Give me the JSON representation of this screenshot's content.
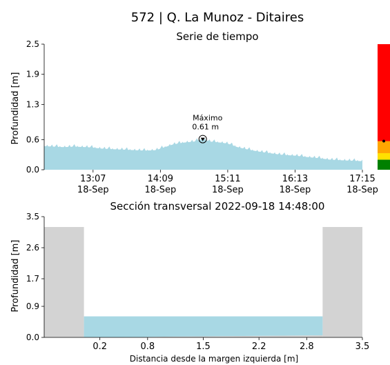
{
  "chart_data": [
    {
      "type": "area",
      "title": "572 | Q. La Munoz - Ditaires",
      "subtitle": "Serie de tiempo",
      "xlabel": "",
      "ylabel": "Profundidad [m]",
      "ylim": [
        0.0,
        2.5
      ],
      "y_ticks": [
        "0.0",
        "0.6",
        "1.3",
        "1.9",
        "2.5"
      ],
      "x_ticks": [
        {
          "time": "13:07",
          "date": "18-Sep"
        },
        {
          "time": "14:09",
          "date": "18-Sep"
        },
        {
          "time": "15:11",
          "date": "18-Sep"
        },
        {
          "time": "16:13",
          "date": "18-Sep"
        },
        {
          "time": "17:15",
          "date": "18-Sep"
        }
      ],
      "x_time_range": [
        "12:22",
        "17:15"
      ],
      "series": [
        {
          "color": "#a8d8e4",
          "x": [
            "12:22",
            "12:30",
            "12:40",
            "12:50",
            "13:00",
            "13:07",
            "13:15",
            "13:25",
            "13:35",
            "13:45",
            "13:55",
            "14:05",
            "14:09",
            "14:20",
            "14:30",
            "14:40",
            "14:48",
            "14:55",
            "15:05",
            "15:11",
            "15:20",
            "15:30",
            "15:40",
            "15:50",
            "16:00",
            "16:13",
            "16:25",
            "16:35",
            "16:45",
            "16:55",
            "17:05",
            "17:15"
          ],
          "y": [
            0.47,
            0.46,
            0.45,
            0.46,
            0.45,
            0.44,
            0.42,
            0.41,
            0.4,
            0.39,
            0.38,
            0.39,
            0.42,
            0.5,
            0.54,
            0.56,
            0.61,
            0.56,
            0.54,
            0.52,
            0.45,
            0.4,
            0.36,
            0.33,
            0.3,
            0.28,
            0.25,
            0.23,
            0.2,
            0.19,
            0.18,
            0.17
          ]
        }
      ],
      "max_annotation": {
        "label": "Máximo",
        "value": "0.61 m",
        "time": "14:48",
        "y": 0.61
      },
      "alert_bar": {
        "levels": [
          {
            "color": "#008000",
            "from": 0.0,
            "to": 0.2
          },
          {
            "color": "#ffe000",
            "from": 0.2,
            "to": 0.33
          },
          {
            "color": "#ffa500",
            "from": 0.33,
            "to": 0.57
          },
          {
            "color": "#ff0000",
            "from": 0.57,
            "to": 2.5
          }
        ],
        "current_level": 0.57
      }
    },
    {
      "type": "area",
      "title": "Sección transversal 2022-09-18 14:48:00",
      "xlabel": "Distancia desde la margen izquierda [m]",
      "ylabel": "Profundidad [m]",
      "ylim": [
        0.0,
        3.5
      ],
      "xlim": [
        -0.5,
        3.5
      ],
      "y_ticks": [
        "0.0",
        "0.9",
        "1.7",
        "2.6",
        "3.5"
      ],
      "x_ticks": [
        "0.2",
        "0.8",
        "1.5",
        "2.2",
        "2.8",
        "3.5"
      ],
      "banks": {
        "color": "#d3d3d3",
        "left_edge": 0.0,
        "right_edge": 3.0,
        "top": 3.2
      },
      "water": {
        "color": "#a8d8e4",
        "level": 0.61
      },
      "bed": {
        "x": [
          0.0,
          0.5,
          1.0,
          1.5,
          2.0,
          2.5,
          3.0
        ],
        "y": [
          0.0,
          0.0,
          0.02,
          0.03,
          0.04,
          0.05,
          0.06
        ]
      }
    }
  ]
}
